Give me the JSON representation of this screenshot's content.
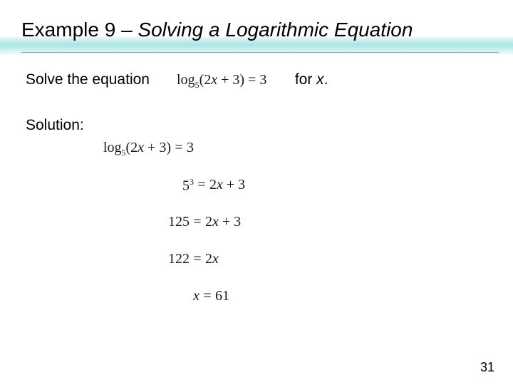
{
  "title": {
    "prefix": "Example 9 – ",
    "italic": "Solving a Logarithmic Equation"
  },
  "intro": {
    "lead": "Solve the equation",
    "for": "for ",
    "var": "x",
    "period": "."
  },
  "inline_eq": {
    "log": "log",
    "base": "5",
    "arg": "(2",
    "xvar": "x",
    "arg2": " + 3) = 3"
  },
  "solution_label": "Solution:",
  "steps": {
    "s1": {
      "lhs_log": "log",
      "lhs_base": "5",
      "lhs_arg1": "(2",
      "lhs_x": "x",
      "lhs_arg2": " + 3)",
      "rhs": "3"
    },
    "s2": {
      "lhs_base": "5",
      "lhs_exp": "3",
      "rhs1": "2",
      "rhs_x": "x",
      "rhs2": " + 3"
    },
    "s3": {
      "lhs": "125",
      "rhs1": "2",
      "rhs_x": "x",
      "rhs2": " + 3"
    },
    "s4": {
      "lhs": "122",
      "rhs1": "2",
      "rhs_x": "x",
      "rhs2": ""
    },
    "s5": {
      "lhs_x": "x",
      "rhs": "61"
    }
  },
  "page_number": "31",
  "colors": {
    "stripe": "#8fe0dd",
    "text": "#000000",
    "math": "#1a1a1a",
    "rule": "#9aa0a0",
    "bg": "#ffffff"
  }
}
